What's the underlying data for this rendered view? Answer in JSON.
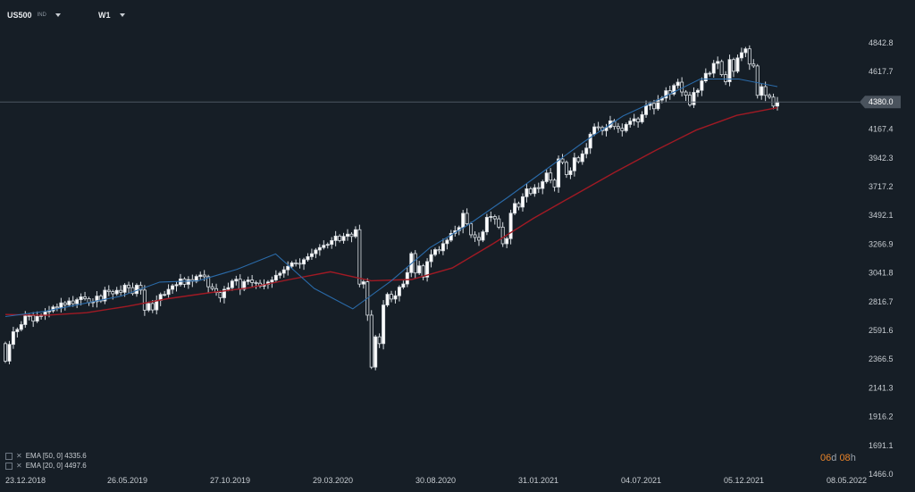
{
  "header": {
    "symbol": "US500",
    "symbol_tag": "IND",
    "timeframe": "W1"
  },
  "legend": [
    {
      "label": "EMA [50, 0] 4335.6"
    },
    {
      "label": "EMA [20, 0] 4497.6"
    }
  ],
  "countdown": {
    "days": "06",
    "days_unit": "d",
    "hours": "08",
    "hours_unit": "h"
  },
  "current_price_label": "4380.0",
  "colors": {
    "background": "#161e26",
    "candle_up": "#ffffff",
    "candle_down": "#161e26",
    "ema50": "#a01a24",
    "ema20": "#2a6aa8",
    "grid": "#1f2832",
    "current_price_line": "#4c5560",
    "price_tag": "#4a535d"
  },
  "chart_data": {
    "type": "candlestick",
    "y_ticks": [
      "4842.8",
      "4617.7",
      "4380.0",
      "4167.4",
      "3942.3",
      "3717.2",
      "3492.1",
      "3266.9",
      "3041.8",
      "2816.7",
      "2591.6",
      "2366.5",
      "2141.3",
      "1916.2",
      "1691.1",
      "1466.0"
    ],
    "x_ticks": [
      "23.12.2018",
      "26.05.2019",
      "27.10.2019",
      "29.03.2020",
      "30.08.2020",
      "31.01.2021",
      "04.07.2021",
      "05.12.2021",
      "08.05.2022"
    ],
    "ylim": [
      1466.0,
      4842.8
    ],
    "current_price": 4380.0,
    "grid": false,
    "legend_position": "bottom-left",
    "series": [
      {
        "name": "EMA [50, 0]",
        "last_value": 4335.6
      },
      {
        "name": "EMA [20, 0]",
        "last_value": 4497.6
      }
    ],
    "ema50": [
      2716,
      2710,
      2730,
      2780,
      2840,
      2885,
      2925,
      2990,
      3050,
      2980,
      2990,
      3080,
      3270,
      3470,
      3650,
      3830,
      4000,
      4160,
      4275,
      4335
    ],
    "ema20": [
      2700,
      2740,
      2800,
      2860,
      2970,
      2980,
      3070,
      3190,
      2920,
      2760,
      2980,
      3240,
      3420,
      3630,
      3850,
      4070,
      4270,
      4410,
      4560,
      4560,
      4500
    ],
    "closes": [
      2351,
      2482,
      2581,
      2599,
      2637,
      2704,
      2708,
      2664,
      2701,
      2709,
      2739,
      2744,
      2775,
      2767,
      2807,
      2792,
      2822,
      2801,
      2832,
      2854,
      2840,
      2808,
      2816,
      2860,
      2822,
      2906,
      2895,
      2878,
      2905,
      2890,
      2946,
      2926,
      2880,
      2945,
      2907,
      2750,
      2802,
      2752,
      2826,
      2873,
      2873,
      2913,
      2941,
      2950,
      2994,
      2952,
      2989,
      2976,
      3014,
      3025,
      3012,
      2933,
      2918,
      2888,
      2847,
      2913,
      2926,
      2978,
      2992,
      2914,
      2974,
      2986,
      2966,
      2961,
      2938,
      2952,
      2970,
      2986,
      3023,
      3039,
      3066,
      3093,
      3120,
      3117,
      3111,
      3145,
      3169,
      3192,
      3221,
      3240,
      3258,
      3265,
      3295,
      3330,
      3295,
      3328,
      3345,
      3327,
      3380,
      2954,
      2972,
      2711,
      2304,
      2541,
      2488,
      2790,
      2874,
      2837,
      2863,
      2930,
      2955,
      3044,
      3193,
      3041,
      3097,
      3009,
      3130,
      3185,
      3224,
      3215,
      3271,
      3298,
      3351,
      3372,
      3397,
      3508,
      3426,
      3340,
      3319,
      3298,
      3363,
      3477,
      3483,
      3465,
      3400,
      3270,
      3310,
      3509,
      3585,
      3557,
      3638,
      3700,
      3663,
      3709,
      3703,
      3756,
      3824,
      3768,
      3714,
      3934,
      3907,
      3811,
      3841,
      3943,
      3913,
      3974,
      4019,
      4128,
      4185,
      4180,
      4155,
      4181,
      4232,
      4188,
      4173,
      4155,
      4204,
      4230,
      4248,
      4224,
      4281,
      4352,
      4369,
      4327,
      4395,
      4411,
      4468,
      4442,
      4509,
      4535,
      4458,
      4433,
      4358,
      4455,
      4471,
      4545,
      4604,
      4605,
      4682,
      4697,
      4594,
      4538,
      4712,
      4620,
      4725,
      4766,
      4796,
      4677,
      4662,
      4432,
      4500,
      4432,
      4418,
      4348,
      4380
    ],
    "opens": [
      2488,
      2351,
      2482,
      2581,
      2599,
      2637,
      2704,
      2708,
      2664,
      2701,
      2709,
      2739,
      2744,
      2775,
      2767,
      2807,
      2792,
      2822,
      2801,
      2832,
      2854,
      2840,
      2808,
      2816,
      2860,
      2822,
      2906,
      2895,
      2878,
      2905,
      2890,
      2946,
      2926,
      2880,
      2945,
      2907,
      2750,
      2802,
      2752,
      2826,
      2873,
      2873,
      2913,
      2941,
      2950,
      2994,
      2952,
      2989,
      2976,
      3014,
      3025,
      3012,
      2933,
      2918,
      2888,
      2847,
      2913,
      2926,
      2978,
      2992,
      2914,
      2974,
      2986,
      2966,
      2961,
      2938,
      2952,
      2970,
      2986,
      3023,
      3039,
      3066,
      3093,
      3120,
      3117,
      3111,
      3145,
      3169,
      3192,
      3221,
      3240,
      3258,
      3265,
      3295,
      3330,
      3295,
      3328,
      3345,
      3327,
      3380,
      2954,
      2972,
      2711,
      2304,
      2541,
      2488,
      2790,
      2874,
      2837,
      2863,
      2930,
      2955,
      3044,
      3193,
      3041,
      3097,
      3009,
      3130,
      3185,
      3224,
      3215,
      3271,
      3298,
      3351,
      3372,
      3397,
      3508,
      3426,
      3340,
      3319,
      3298,
      3363,
      3477,
      3483,
      3465,
      3400,
      3270,
      3310,
      3509,
      3585,
      3557,
      3638,
      3700,
      3663,
      3709,
      3703,
      3756,
      3824,
      3768,
      3714,
      3934,
      3907,
      3811,
      3841,
      3943,
      3913,
      3974,
      4019,
      4128,
      4185,
      4180,
      4155,
      4181,
      4232,
      4188,
      4173,
      4155,
      4204,
      4230,
      4248,
      4224,
      4281,
      4352,
      4369,
      4327,
      4395,
      4411,
      4468,
      4442,
      4509,
      4535,
      4458,
      4433,
      4358,
      4455,
      4471,
      4545,
      4604,
      4605,
      4682,
      4697,
      4594,
      4538,
      4712,
      4620,
      4725,
      4766,
      4796,
      4677,
      4662,
      4432,
      4500,
      4432,
      4418,
      4348
    ]
  }
}
